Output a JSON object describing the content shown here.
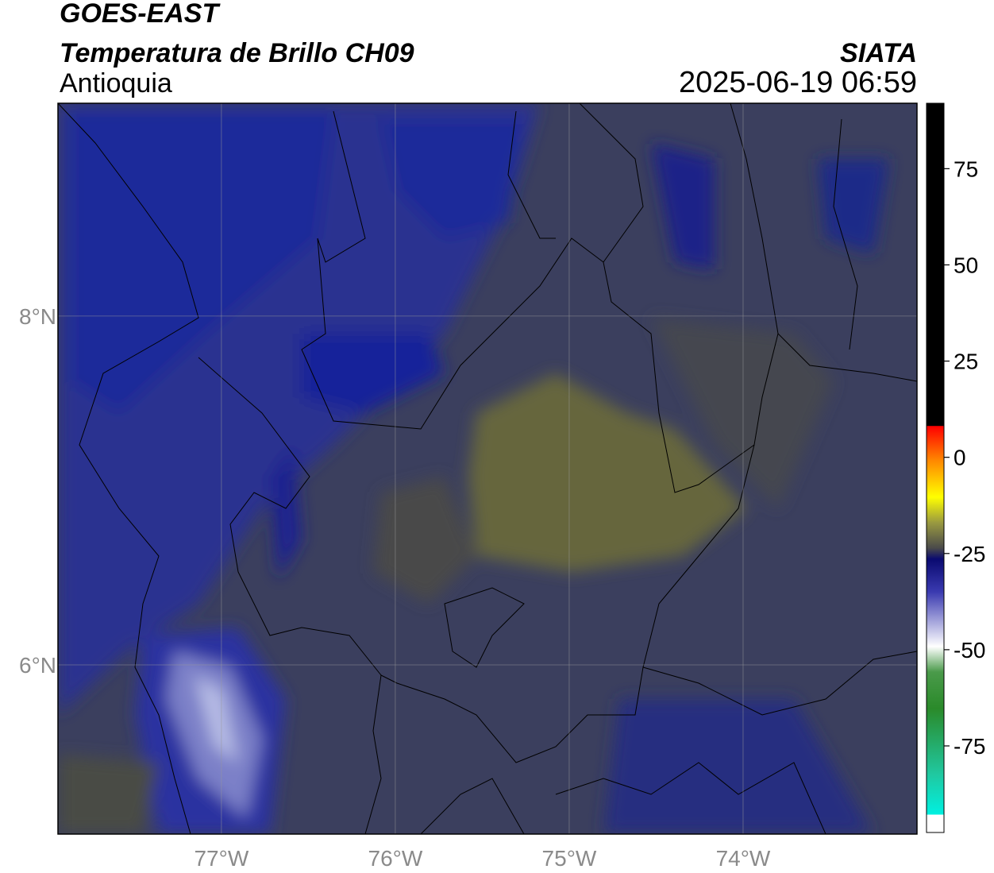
{
  "header": {
    "title": "GOES-EAST",
    "subtitle": "Temperatura de Brillo CH09",
    "region": "Antioquia",
    "source": "SIATA",
    "datetime": "2025-06-19 06:59"
  },
  "map": {
    "lon_range": [
      -77.94,
      -73.0
    ],
    "lat_range": [
      5.03,
      9.22
    ],
    "lon_ticks": [
      {
        "value": -77,
        "label": "77°W"
      },
      {
        "value": -76,
        "label": "76°W"
      },
      {
        "value": -75,
        "label": "75°W"
      },
      {
        "value": -74,
        "label": "74°W"
      }
    ],
    "lat_ticks": [
      {
        "value": 8,
        "label": "8°N"
      },
      {
        "value": 6,
        "label": "6°N"
      }
    ]
  },
  "colorbar": {
    "range": [
      -97.5,
      92
    ],
    "ticks": [
      75,
      50,
      25,
      0,
      -25,
      -50,
      -75
    ]
  }
}
